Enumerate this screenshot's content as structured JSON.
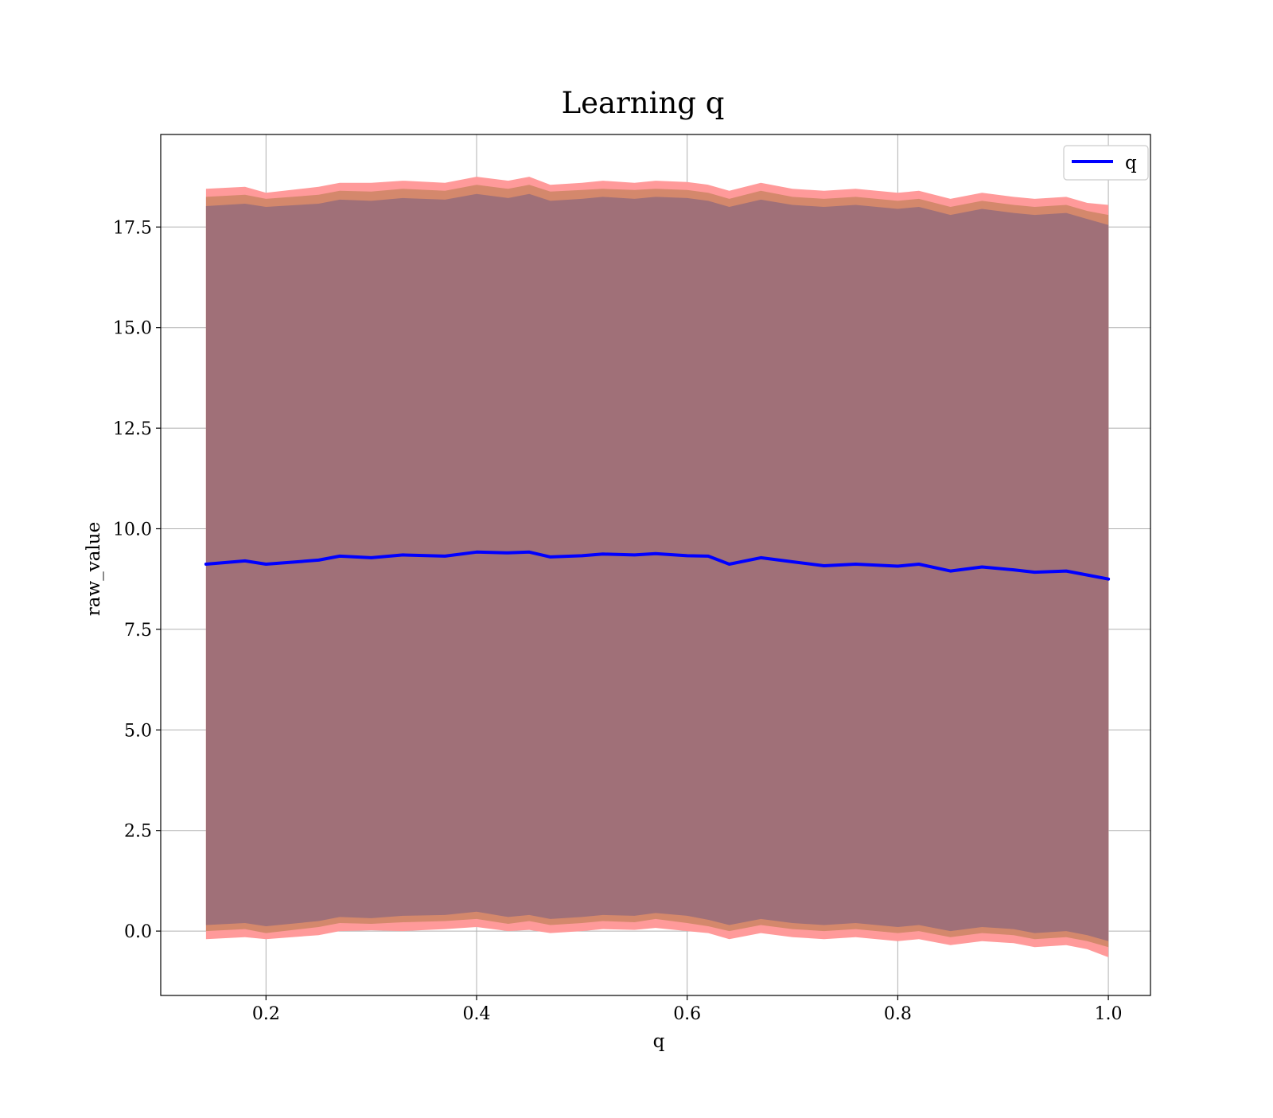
{
  "colors": {
    "line": "#0000ff",
    "band_outer": "#ff9a9a",
    "band_mid": "#d4886c",
    "band_inner": "#a07078",
    "grid": "#b0b0b0",
    "axes": "#000000"
  },
  "chart_data": {
    "type": "area",
    "title": "Learning q",
    "xlabel": "q",
    "ylabel": "raw_value",
    "xlim": [
      0.1,
      1.04
    ],
    "ylim": [
      -1.6,
      19.8
    ],
    "xticks": [
      0.2,
      0.4,
      0.6,
      0.8,
      1.0
    ],
    "xtick_labels": [
      "0.2",
      "0.4",
      "0.6",
      "0.8",
      "1.0"
    ],
    "yticks": [
      0.0,
      2.5,
      5.0,
      7.5,
      10.0,
      12.5,
      15.0,
      17.5
    ],
    "ytick_labels": [
      "0.0",
      "2.5",
      "5.0",
      "7.5",
      "10.0",
      "12.5",
      "15.0",
      "17.5"
    ],
    "grid": true,
    "legend": {
      "position": "top-right",
      "entries": [
        "q"
      ]
    },
    "x": [
      0.143,
      0.18,
      0.2,
      0.25,
      0.27,
      0.3,
      0.33,
      0.37,
      0.4,
      0.43,
      0.45,
      0.47,
      0.5,
      0.52,
      0.55,
      0.57,
      0.6,
      0.62,
      0.64,
      0.67,
      0.7,
      0.73,
      0.76,
      0.8,
      0.82,
      0.85,
      0.88,
      0.91,
      0.93,
      0.96,
      0.98,
      1.0
    ],
    "series": [
      {
        "name": "q",
        "values": [
          9.12,
          9.2,
          9.12,
          9.22,
          9.32,
          9.28,
          9.35,
          9.32,
          9.42,
          9.4,
          9.42,
          9.3,
          9.33,
          9.37,
          9.35,
          9.38,
          9.33,
          9.32,
          9.12,
          9.28,
          9.18,
          9.08,
          9.12,
          9.07,
          9.12,
          8.95,
          9.05,
          8.98,
          8.92,
          8.95,
          8.85,
          8.75
        ]
      }
    ],
    "bands": [
      {
        "lower": [
          -0.2,
          -0.15,
          -0.2,
          -0.1,
          0.0,
          0.02,
          0.0,
          0.05,
          0.1,
          0.0,
          0.03,
          -0.05,
          0.0,
          0.05,
          0.03,
          0.08,
          0.0,
          -0.05,
          -0.2,
          -0.05,
          -0.15,
          -0.2,
          -0.15,
          -0.25,
          -0.2,
          -0.35,
          -0.25,
          -0.3,
          -0.4,
          -0.35,
          -0.45,
          -0.65
        ],
        "upper": [
          18.45,
          18.5,
          18.35,
          18.5,
          18.6,
          18.6,
          18.65,
          18.6,
          18.75,
          18.65,
          18.75,
          18.55,
          18.6,
          18.65,
          18.6,
          18.65,
          18.62,
          18.55,
          18.4,
          18.6,
          18.45,
          18.4,
          18.45,
          18.35,
          18.4,
          18.2,
          18.35,
          18.25,
          18.2,
          18.25,
          18.1,
          18.05
        ]
      },
      {
        "lower": [
          0.0,
          0.05,
          -0.05,
          0.1,
          0.2,
          0.18,
          0.22,
          0.25,
          0.3,
          0.18,
          0.25,
          0.15,
          0.2,
          0.25,
          0.22,
          0.3,
          0.2,
          0.12,
          0.0,
          0.15,
          0.05,
          0.0,
          0.05,
          -0.05,
          0.0,
          -0.15,
          -0.05,
          -0.1,
          -0.2,
          -0.15,
          -0.25,
          -0.4
        ],
        "upper": [
          18.25,
          18.3,
          18.2,
          18.3,
          18.4,
          18.38,
          18.45,
          18.4,
          18.55,
          18.45,
          18.55,
          18.38,
          18.42,
          18.45,
          18.42,
          18.45,
          18.42,
          18.35,
          18.2,
          18.4,
          18.25,
          18.2,
          18.25,
          18.15,
          18.2,
          18.0,
          18.15,
          18.05,
          18.0,
          18.05,
          17.9,
          17.8
        ]
      },
      {
        "lower": [
          0.15,
          0.2,
          0.12,
          0.25,
          0.35,
          0.32,
          0.38,
          0.4,
          0.48,
          0.35,
          0.4,
          0.3,
          0.35,
          0.4,
          0.38,
          0.45,
          0.38,
          0.28,
          0.15,
          0.3,
          0.2,
          0.15,
          0.2,
          0.1,
          0.15,
          0.0,
          0.1,
          0.05,
          -0.05,
          0.0,
          -0.1,
          -0.25
        ],
        "upper": [
          18.02,
          18.08,
          18.0,
          18.08,
          18.18,
          18.15,
          18.22,
          18.18,
          18.32,
          18.22,
          18.32,
          18.15,
          18.2,
          18.25,
          18.2,
          18.25,
          18.22,
          18.15,
          18.0,
          18.18,
          18.05,
          18.0,
          18.05,
          17.95,
          18.0,
          17.8,
          17.95,
          17.85,
          17.8,
          17.85,
          17.7,
          17.55
        ]
      }
    ]
  }
}
